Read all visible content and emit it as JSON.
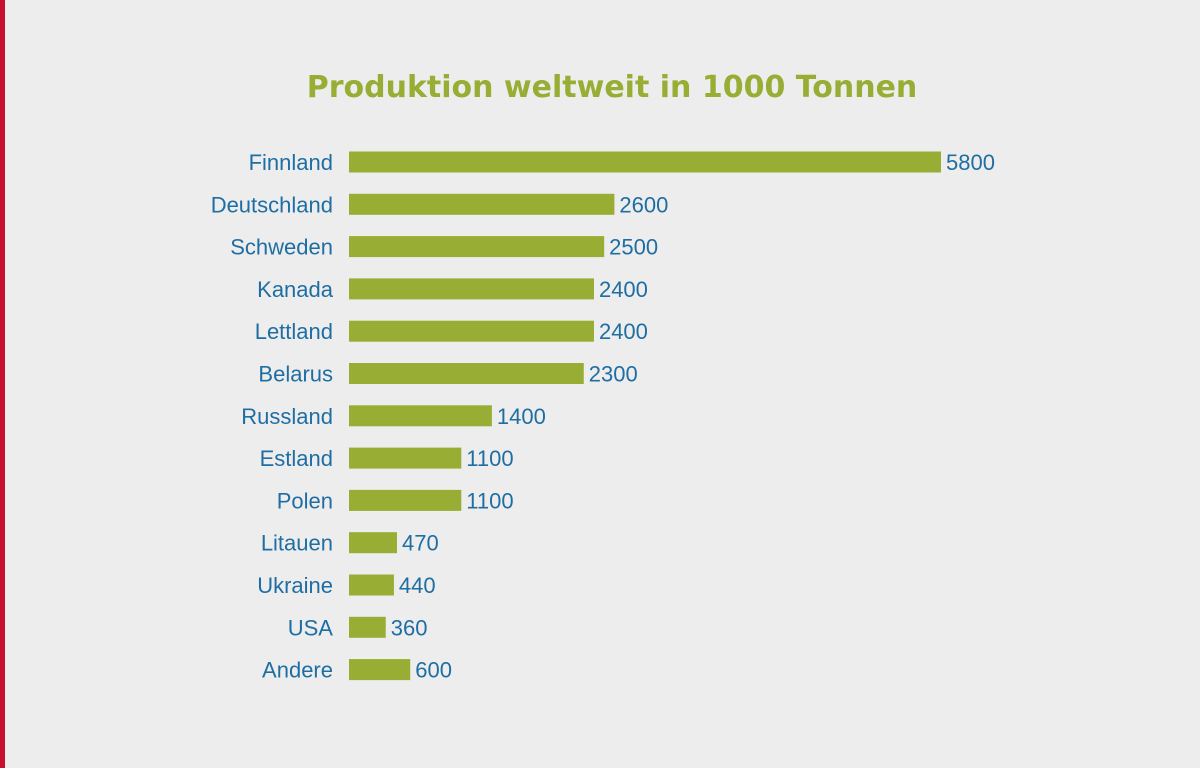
{
  "chart_data": {
    "type": "bar",
    "orientation": "horizontal",
    "title": "Produktion weltweit in 1000 Tonnen",
    "categories": [
      "Finnland",
      "Deutschland",
      "Schweden",
      "Kanada",
      "Lettland",
      "Belarus",
      "Russland",
      "Estland",
      "Polen",
      "Litauen",
      "Ukraine",
      "USA",
      "Andere"
    ],
    "values": [
      5800,
      2600,
      2500,
      2400,
      2400,
      2300,
      1400,
      1100,
      1100,
      470,
      440,
      360,
      600
    ],
    "xlabel": "",
    "ylabel": "",
    "xlim": [
      0,
      5800
    ],
    "grid": false,
    "legend": "none"
  },
  "colors": {
    "bar": "#97ad34",
    "label": "#1f6ea3",
    "title": "#97ad34",
    "background": "#ededed",
    "accent_border": "#c8102e"
  }
}
